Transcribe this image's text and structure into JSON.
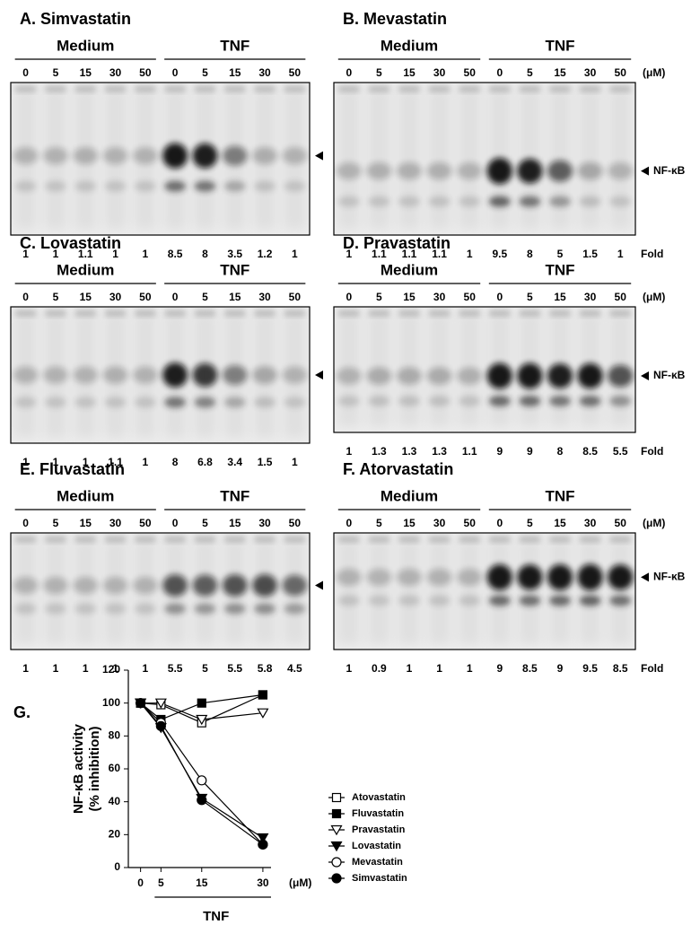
{
  "panels": [
    {
      "title": "A. Simvastatin",
      "groups": [
        "Medium",
        "TNF"
      ],
      "lanes": [
        0,
        5,
        15,
        30,
        50,
        0,
        5,
        15,
        30,
        50
      ],
      "fold": [
        1,
        1,
        1.1,
        1,
        1,
        8.5,
        8,
        3.5,
        1.2,
        1
      ]
    },
    {
      "title": "B. Mevastatin",
      "groups": [
        "Medium",
        "TNF"
      ],
      "lanes": [
        0,
        5,
        15,
        30,
        50,
        0,
        5,
        15,
        30,
        50
      ],
      "unit": "(μM)",
      "band_label": "NF-κB",
      "fold": [
        1,
        1.1,
        1.1,
        1.1,
        1,
        9.5,
        8,
        5,
        1.5,
        1
      ],
      "fold_label": "Fold"
    },
    {
      "title": "C. Lovastatin",
      "groups": [
        "Medium",
        "TNF"
      ],
      "lanes": [
        0,
        5,
        15,
        30,
        50,
        0,
        5,
        15,
        30,
        50
      ],
      "fold": [
        1,
        1,
        1,
        1.1,
        1,
        8,
        6.8,
        3.4,
        1.5,
        1
      ]
    },
    {
      "title": "D. Pravastatin",
      "groups": [
        "Medium",
        "TNF"
      ],
      "lanes": [
        0,
        5,
        15,
        30,
        50,
        0,
        5,
        15,
        30,
        50
      ],
      "unit": "(μM)",
      "band_label": "NF-κB",
      "fold": [
        1,
        1.3,
        1.3,
        1.3,
        1.1,
        9,
        9,
        8,
        8.5,
        5.5
      ],
      "fold_label": "Fold"
    },
    {
      "title": "E. Fluvastatin",
      "groups": [
        "Medium",
        "TNF"
      ],
      "lanes": [
        0,
        5,
        15,
        30,
        50,
        0,
        5,
        15,
        30,
        50
      ],
      "fold": [
        1,
        1,
        1,
        1,
        1,
        5.5,
        5,
        5.5,
        5.8,
        4.5
      ]
    },
    {
      "title": "F. Atorvastatin",
      "groups": [
        "Medium",
        "TNF"
      ],
      "lanes": [
        0,
        5,
        15,
        30,
        50,
        0,
        5,
        15,
        30,
        50
      ],
      "unit": "(μM)",
      "band_label": "NF-κB",
      "fold": [
        1,
        0.9,
        1,
        1,
        1,
        9,
        8.5,
        9,
        9.5,
        8.5
      ],
      "fold_label": "Fold"
    }
  ],
  "chart_data": {
    "type": "line",
    "title": "G.",
    "y_label": [
      "NF-κB activity",
      "(% inhibition)"
    ],
    "x_group_label": "TNF",
    "x_unit": "(μM)",
    "x": [
      0,
      5,
      15,
      30
    ],
    "xlim": [
      -3,
      32
    ],
    "xticks": [
      0,
      5,
      15,
      30
    ],
    "ylim": [
      0,
      120
    ],
    "yticks": [
      0,
      20,
      40,
      60,
      80,
      100,
      120
    ],
    "series": [
      {
        "name": "Atovastatin",
        "marker": "square",
        "filled": false,
        "color": "#000000",
        "values": [
          100,
          99,
          88,
          105
        ]
      },
      {
        "name": "Fluvastatin",
        "marker": "square",
        "filled": true,
        "color": "#000000",
        "values": [
          100,
          90,
          100,
          105
        ]
      },
      {
        "name": "Pravastatin",
        "marker": "triangle-down",
        "filled": false,
        "color": "#000000",
        "values": [
          100,
          100,
          90,
          94
        ]
      },
      {
        "name": "Lovastatin",
        "marker": "triangle-down",
        "filled": true,
        "color": "#000000",
        "values": [
          100,
          85,
          42,
          18
        ]
      },
      {
        "name": "Mevastatin",
        "marker": "circle",
        "filled": false,
        "color": "#000000",
        "values": [
          100,
          88,
          53,
          14
        ]
      },
      {
        "name": "Simvastatin",
        "marker": "circle",
        "filled": true,
        "color": "#000000",
        "values": [
          100,
          86,
          41,
          14
        ]
      }
    ]
  }
}
